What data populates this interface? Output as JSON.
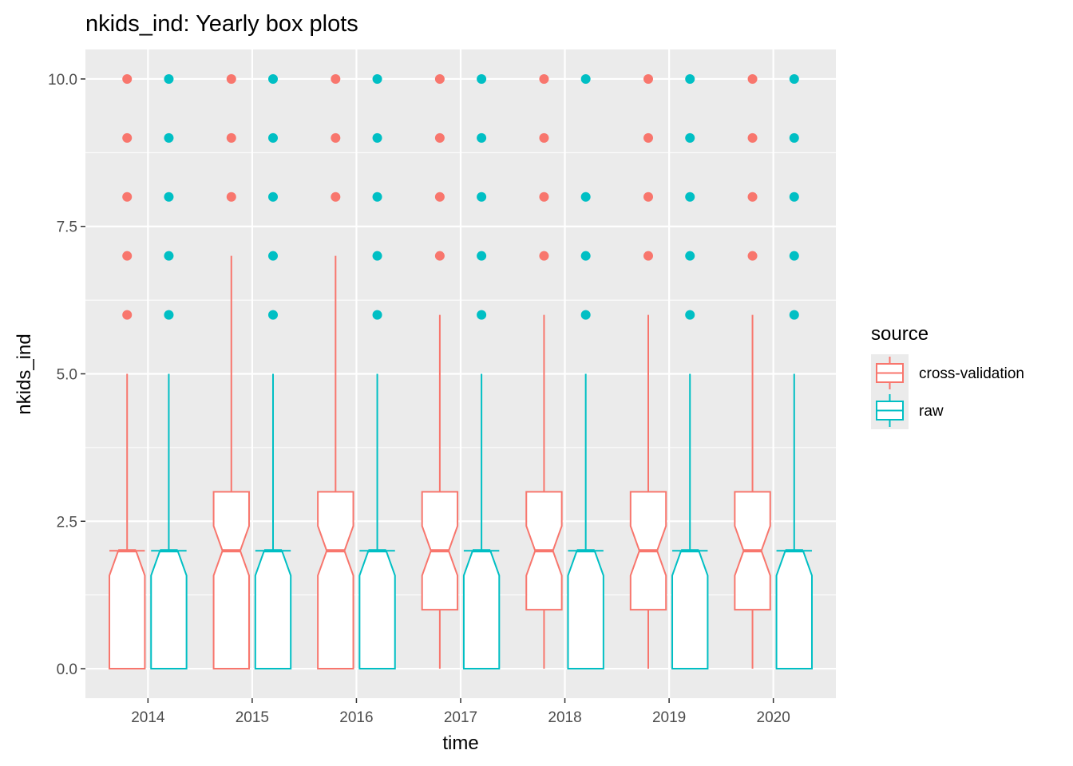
{
  "chart_data": {
    "type": "box",
    "title": "nkids_ind: Yearly box plots",
    "xlabel": "time",
    "ylabel": "nkids_ind",
    "categories": [
      "2014",
      "2015",
      "2016",
      "2017",
      "2018",
      "2019",
      "2020"
    ],
    "ylim": [
      -0.5,
      10.5
    ],
    "y_ticks": [
      "0.0",
      "2.5",
      "5.0",
      "7.5",
      "10.0"
    ],
    "y_tick_values": [
      0,
      2.5,
      5,
      7.5,
      10
    ],
    "notched": true,
    "grid": true,
    "legend": {
      "title": "source",
      "position": "right",
      "entries": [
        "cross-validation",
        "raw"
      ]
    },
    "series": [
      {
        "name": "cross-validation",
        "color": "#F8766D",
        "boxes": [
          {
            "q1": 0,
            "median": 2,
            "q3": 2,
            "whisker_low": 0,
            "whisker_high": 5,
            "outliers": [
              6,
              7,
              8,
              9,
              10
            ]
          },
          {
            "q1": 0,
            "median": 2,
            "q3": 3,
            "whisker_low": 0,
            "whisker_high": 7,
            "outliers": [
              8,
              9,
              10
            ]
          },
          {
            "q1": 0,
            "median": 2,
            "q3": 3,
            "whisker_low": 0,
            "whisker_high": 7,
            "outliers": [
              8,
              9,
              10
            ]
          },
          {
            "q1": 1,
            "median": 2,
            "q3": 3,
            "whisker_low": 0,
            "whisker_high": 6,
            "outliers": [
              7,
              8,
              9,
              10
            ]
          },
          {
            "q1": 1,
            "median": 2,
            "q3": 3,
            "whisker_low": 0,
            "whisker_high": 6,
            "outliers": [
              7,
              8,
              9,
              10
            ]
          },
          {
            "q1": 1,
            "median": 2,
            "q3": 3,
            "whisker_low": 0,
            "whisker_high": 6,
            "outliers": [
              7,
              8,
              9,
              10
            ]
          },
          {
            "q1": 1,
            "median": 2,
            "q3": 3,
            "whisker_low": 0,
            "whisker_high": 6,
            "outliers": [
              7,
              8,
              9,
              10
            ]
          }
        ]
      },
      {
        "name": "raw",
        "color": "#00BFC4",
        "boxes": [
          {
            "q1": 0,
            "median": 2,
            "q3": 2,
            "whisker_low": 0,
            "whisker_high": 5,
            "outliers": [
              6,
              7,
              8,
              9,
              10
            ]
          },
          {
            "q1": 0,
            "median": 2,
            "q3": 2,
            "whisker_low": 0,
            "whisker_high": 5,
            "outliers": [
              6,
              7,
              8,
              9,
              10
            ]
          },
          {
            "q1": 0,
            "median": 2,
            "q3": 2,
            "whisker_low": 0,
            "whisker_high": 5,
            "outliers": [
              6,
              7,
              8,
              9,
              10
            ]
          },
          {
            "q1": 0,
            "median": 2,
            "q3": 2,
            "whisker_low": 0,
            "whisker_high": 5,
            "outliers": [
              6,
              7,
              8,
              9,
              10
            ]
          },
          {
            "q1": 0,
            "median": 2,
            "q3": 2,
            "whisker_low": 0,
            "whisker_high": 5,
            "outliers": [
              6,
              7,
              8,
              10
            ]
          },
          {
            "q1": 0,
            "median": 2,
            "q3": 2,
            "whisker_low": 0,
            "whisker_high": 5,
            "outliers": [
              6,
              7,
              8,
              9,
              10
            ]
          },
          {
            "q1": 0,
            "median": 2,
            "q3": 2,
            "whisker_low": 0,
            "whisker_high": 5,
            "outliers": [
              6,
              7,
              8,
              9,
              10
            ]
          }
        ]
      }
    ]
  }
}
